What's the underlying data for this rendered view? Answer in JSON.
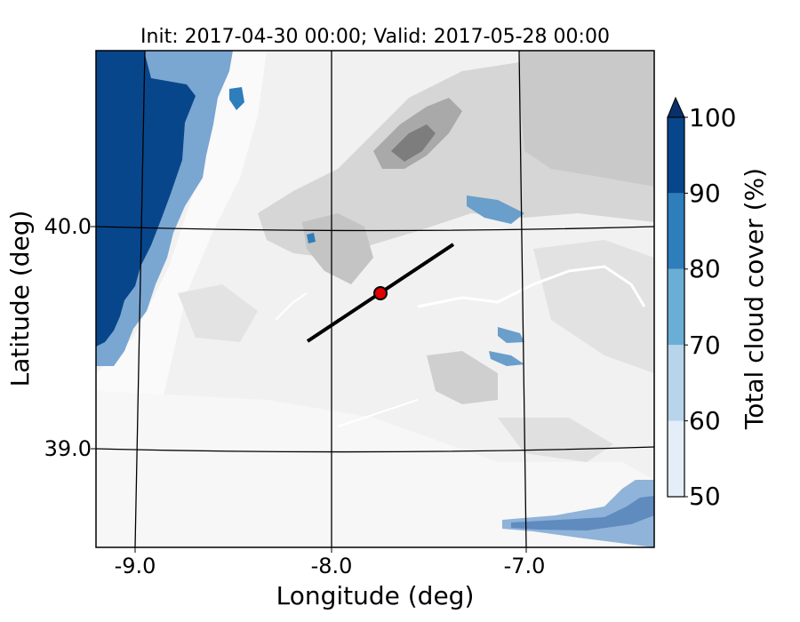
{
  "title": "Init: 2017-04-30 00:00; Valid: 2017-05-28 00:00",
  "xlabel": "Longitude (deg)",
  "ylabel": "Latitude (deg)",
  "xticks": [
    "-9.0",
    "-8.0",
    "-7.0"
  ],
  "yticks": [
    "40.0",
    "39.0"
  ],
  "colorbar": {
    "label": "Total cloud cover (%)",
    "ticks": [
      "100",
      "90",
      "80",
      "70",
      "60",
      "50"
    ],
    "levels": [
      50,
      60,
      70,
      80,
      90,
      100
    ],
    "colors": [
      "#e3eef8",
      "#b7d4ea",
      "#6aaed6",
      "#2e7ebc",
      "#08468b"
    ],
    "extend": "max"
  },
  "chart_data": {
    "type": "heatmap",
    "x_range": [
      -9.2,
      -6.35
    ],
    "y_range": [
      38.55,
      40.8
    ],
    "xticks": [
      -9.0,
      -8.0,
      -7.0
    ],
    "yticks": [
      40.0,
      39.0
    ],
    "gridlines": true,
    "variable": "Total cloud cover (%)",
    "cross_section": {
      "start": [
        -8.12,
        39.48
      ],
      "end": [
        -7.38,
        39.92
      ]
    },
    "marker": {
      "lon": -7.75,
      "lat": 39.7,
      "color": "#e00000"
    }
  }
}
